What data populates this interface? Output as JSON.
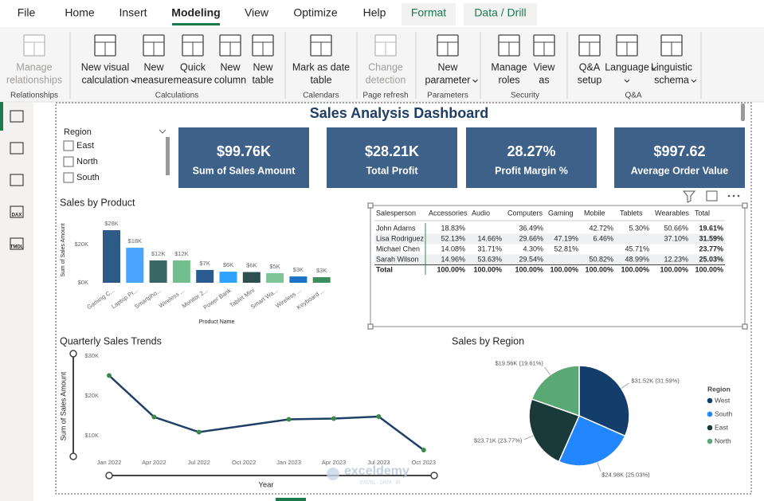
{
  "ribbon": {
    "tabs": [
      "File",
      "Home",
      "Insert",
      "Modeling",
      "View",
      "Optimize",
      "Help",
      "Format",
      "Data / Drill"
    ],
    "buttons": [
      {
        "label": [
          "Manage",
          "relationships"
        ],
        "disabled": true
      },
      {
        "label": [
          "New visual",
          "calculation"
        ],
        "dropdown": true
      },
      {
        "label": [
          "New",
          "measure"
        ]
      },
      {
        "label": [
          "Quick",
          "measure"
        ]
      },
      {
        "label": [
          "New",
          "column"
        ]
      },
      {
        "label": [
          "New",
          "table"
        ]
      },
      {
        "label": [
          "Mark as date",
          "table"
        ]
      },
      {
        "label": [
          "Change",
          "detection"
        ],
        "disabled": true
      },
      {
        "label": [
          "New",
          "parameter"
        ],
        "dropdown": true
      },
      {
        "label": [
          "Manage",
          "roles"
        ]
      },
      {
        "label": [
          "View",
          "as"
        ]
      },
      {
        "label": [
          "Q&A",
          "setup"
        ]
      },
      {
        "label": [
          "Language"
        ],
        "dropdown": true
      },
      {
        "label": [
          "Linguistic",
          "schema"
        ],
        "dropdown": true
      }
    ],
    "groups": [
      "Relationships",
      "Calculations",
      "Calendars",
      "Page refresh",
      "Parameters",
      "Security",
      "Q&A"
    ]
  },
  "sidebar": {
    "icon_labels": [
      "DAX",
      "TMDL"
    ]
  },
  "dashboard": {
    "title": "Sales Analysis Dashboard",
    "slicer": {
      "title": "Region",
      "items": [
        "East",
        "North",
        "South"
      ]
    },
    "cards": [
      {
        "value": "$99.76K",
        "label": "Sum of Sales Amount"
      },
      {
        "value": "$28.21K",
        "label": "Total Profit"
      },
      {
        "value": "28.27%",
        "label": "Profit Margin %"
      },
      {
        "value": "$997.62",
        "label": "Average Order Value"
      }
    ]
  },
  "table": {
    "columns": [
      "Salesperson",
      "Accessories",
      "Audio",
      "Computers",
      "Gaming",
      "Mobile",
      "Tablets",
      "Wearables",
      "Total"
    ],
    "rows": [
      [
        "John Adams",
        "18.83%",
        null,
        "36.49%",
        null,
        "42.72%",
        "5.30%",
        "50.66%",
        "19.61%"
      ],
      [
        "Lisa Rodriguez",
        "52.13%",
        "14.66%",
        "29.66%",
        "47.19%",
        "6.46%",
        null,
        "37.10%",
        "31.59%"
      ],
      [
        "Michael Chen",
        "14.08%",
        "31.71%",
        "4.30%",
        "52.81%",
        null,
        "45.71%",
        null,
        "23.77%"
      ],
      [
        "Sarah Wilson",
        "14.96%",
        "53.63%",
        "29.54%",
        null,
        "50.82%",
        "48.99%",
        "12.23%",
        "25.03%"
      ],
      [
        "Total",
        "100.00%",
        "100.00%",
        "100.00%",
        "100.00%",
        "100.00%",
        "100.00%",
        "100.00%",
        "100.00%"
      ]
    ]
  },
  "watermark": {
    "name": "exceldemy",
    "tagline": "EXCEL · DATA · BI"
  },
  "chart_data": [
    {
      "type": "bar",
      "title": "Sales by Product",
      "x_label": "Product Name",
      "y_label": "Sum of Sales Amount",
      "categories": [
        "Gaming C...",
        "Laptop Pr...",
        "Smartpho...",
        "Wireless ...",
        "Monitor 2...",
        "Power Bank",
        "Tablet Mini",
        "Smart Wa...",
        "Wireless ...",
        "Keyboard ..."
      ],
      "values": [
        27500,
        18300,
        11700,
        11700,
        6700,
        5800,
        5600,
        5000,
        3300,
        2900
      ],
      "value_labels": [
        "$28K",
        "$18K",
        "$12K",
        "$12K",
        "$7K",
        "$6K",
        "$6K",
        "$5K",
        "$3K",
        "$3K"
      ],
      "colors": [
        "#2e5b86",
        "#4aa3ff",
        "#3b6666",
        "#72bf8d",
        "#2a5a8f",
        "#2fa2ff",
        "#2d4f4f",
        "#7dc597",
        "#1b72c9",
        "#3c8c5e"
      ],
      "ylim": [
        0,
        30000
      ],
      "yticks": [
        {
          "value": 0,
          "label": "$0K"
        },
        {
          "value": 20000,
          "label": "$20K"
        }
      ]
    },
    {
      "type": "line",
      "title": "Quarterly Sales Trends",
      "x_label": "Year",
      "y_label": "Sum of Sales Amount",
      "x": [
        "Jan 2022",
        "Apr 2022",
        "Jul 2022",
        "Jan 2023",
        "Apr 2023",
        "Jul 2023",
        "Oct 2023"
      ],
      "values": [
        25100,
        14700,
        10900,
        14100,
        14300,
        14800,
        6400
      ],
      "color": "#1e3f66",
      "marker_color": "#3a8a4a",
      "xticks": [
        "Jan 2022",
        "Apr 2022",
        "Jul 2022",
        "Oct 2022",
        "Jan 2023",
        "Apr 2023",
        "Jul 2023",
        "Oct 2023"
      ],
      "ylim": [
        5000,
        30000
      ],
      "yticks": [
        {
          "value": 10000,
          "label": "$10K"
        },
        {
          "value": 20000,
          "label": "$20K"
        },
        {
          "value": 30000,
          "label": "$30K"
        }
      ]
    },
    {
      "type": "pie",
      "title": "Sales by Region",
      "legend_title": "Region",
      "categories": [
        "West",
        "South",
        "East",
        "North"
      ],
      "values": [
        31520,
        24980,
        23710,
        19560
      ],
      "value_labels": [
        "$31.52K (31.59%)",
        "$24.98K (25.03%)",
        "$23.71K (23.77%)",
        "$19.56K (19.61%)"
      ],
      "colors": [
        "#133d6b",
        "#2186ff",
        "#1a3a3a",
        "#5aa874"
      ]
    }
  ]
}
